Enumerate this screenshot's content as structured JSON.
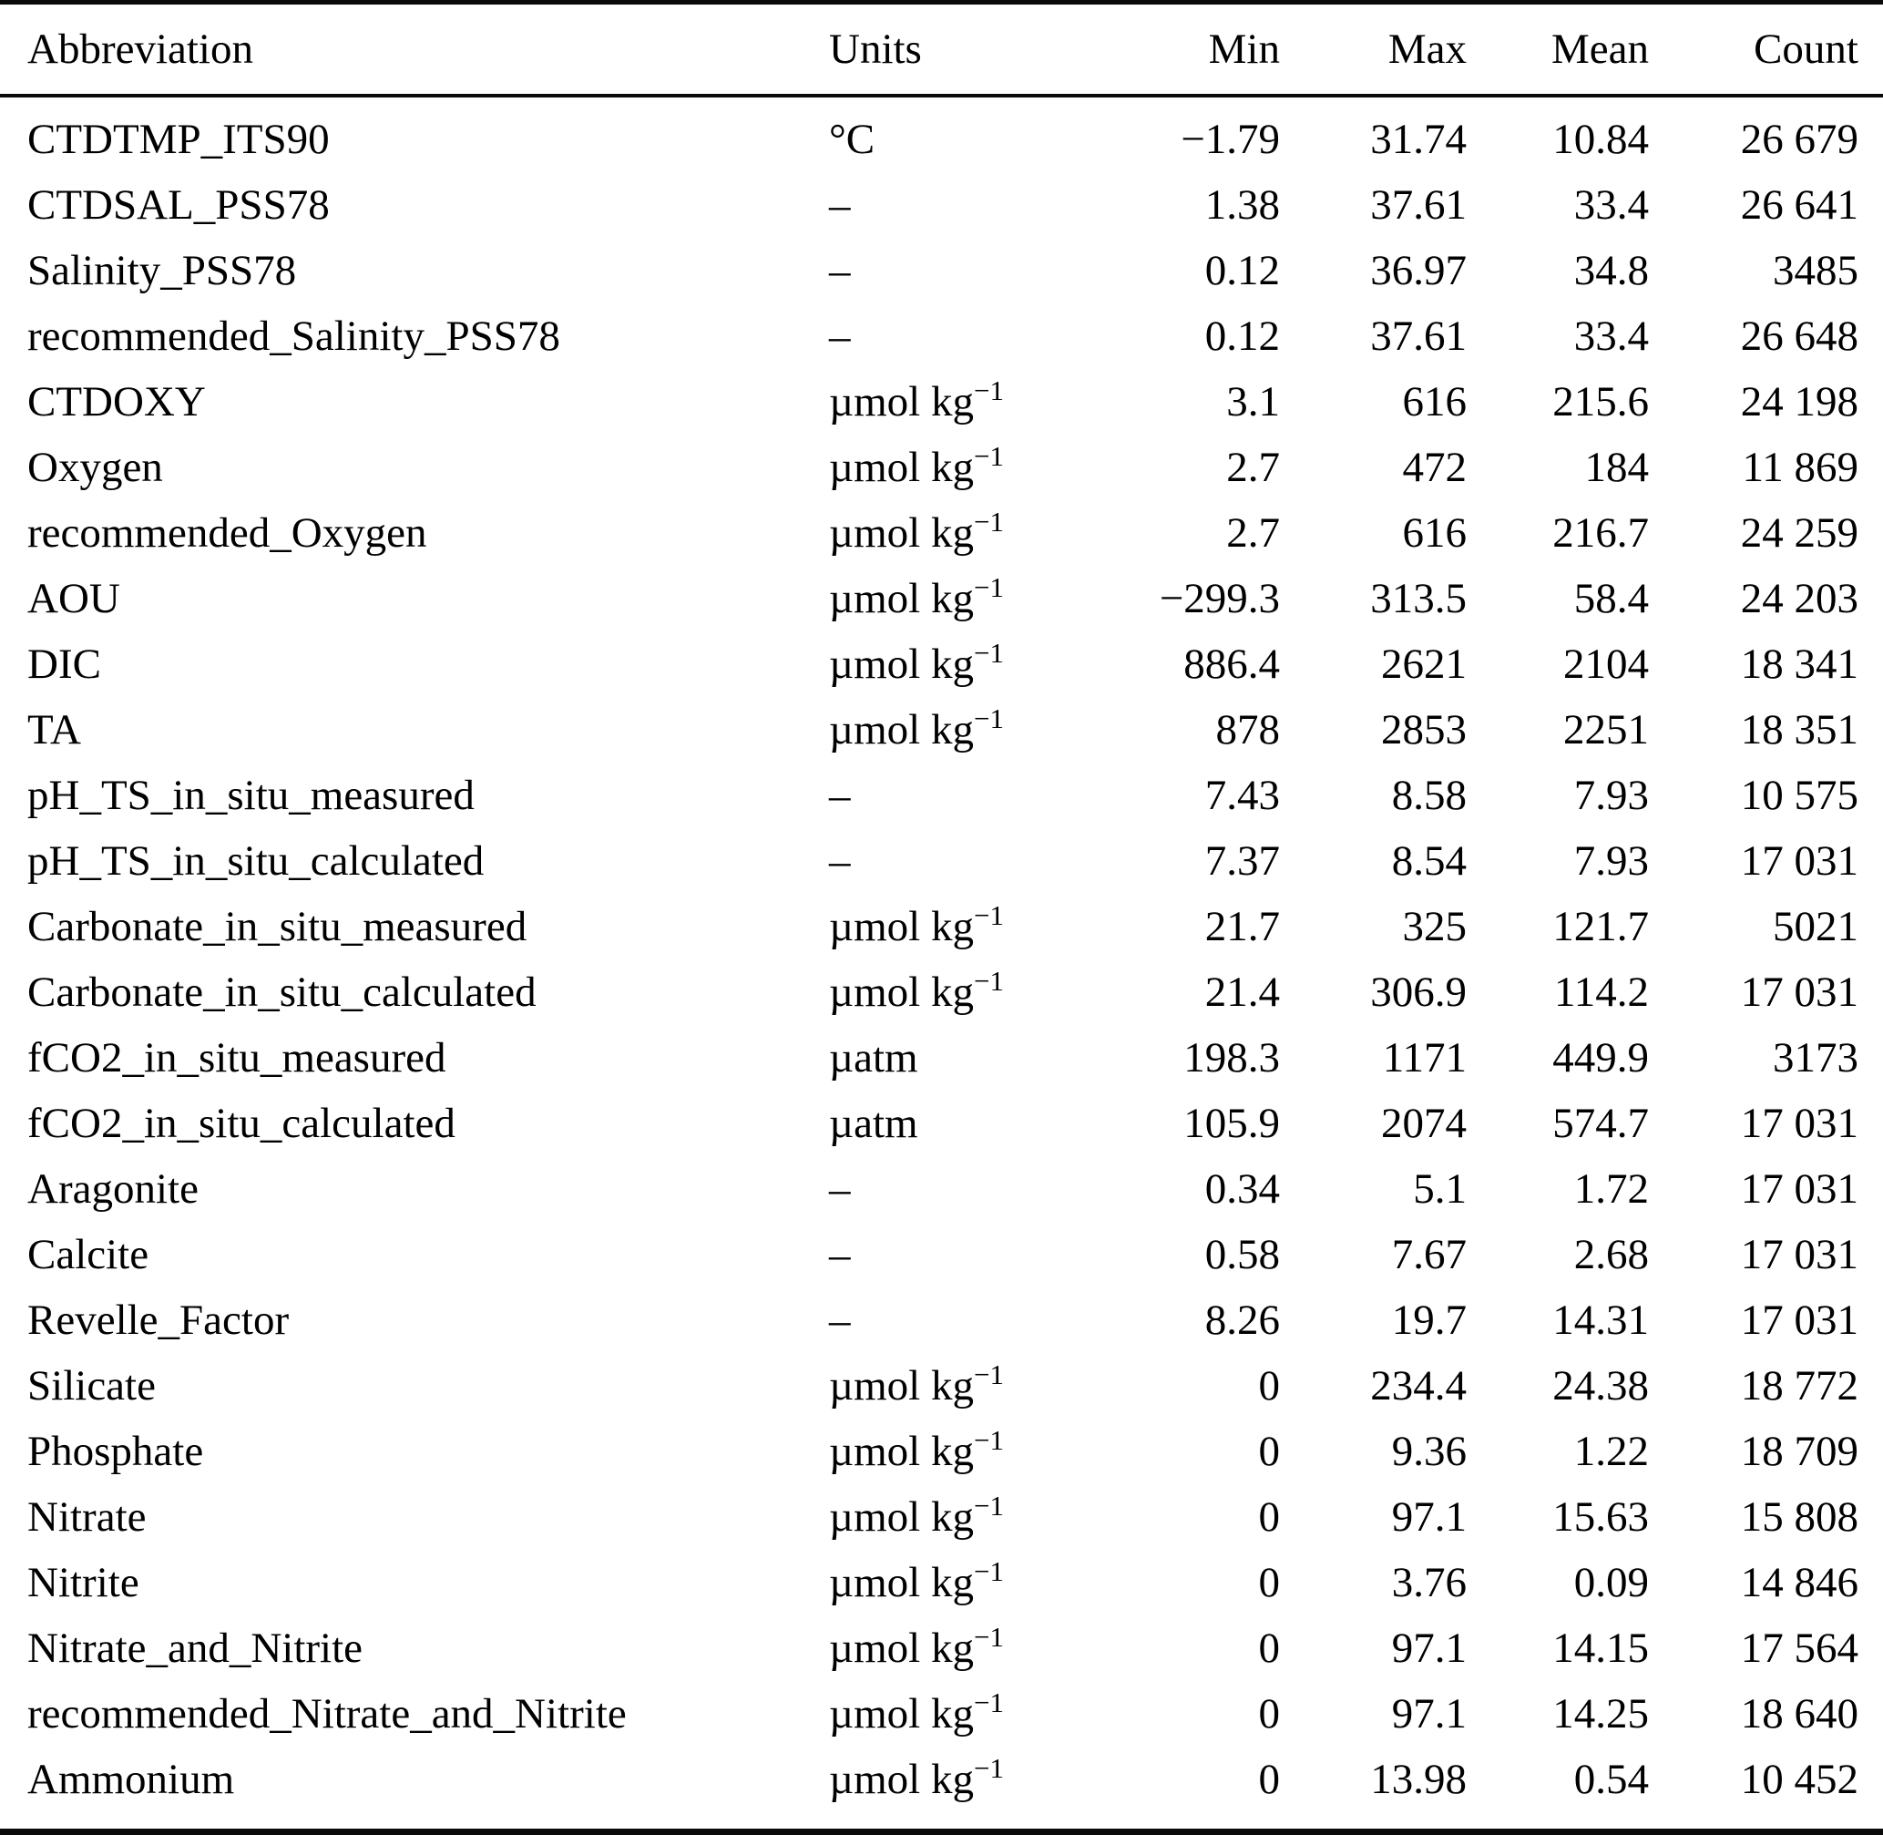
{
  "table": {
    "columns": [
      {
        "key": "abbreviation",
        "label": "Abbreviation",
        "align": "left"
      },
      {
        "key": "units",
        "label": "Units",
        "align": "left"
      },
      {
        "key": "min",
        "label": "Min",
        "align": "right"
      },
      {
        "key": "max",
        "label": "Max",
        "align": "right"
      },
      {
        "key": "mean",
        "label": "Mean",
        "align": "right"
      },
      {
        "key": "count",
        "label": "Count",
        "align": "right"
      }
    ],
    "rows": [
      [
        "CTDTMP_ITS90",
        "°C",
        "−1.79",
        "31.74",
        "10.84",
        "26 679"
      ],
      [
        "CTDSAL_PSS78",
        "–",
        "1.38",
        "37.61",
        "33.4",
        "26 641"
      ],
      [
        "Salinity_PSS78",
        "–",
        "0.12",
        "36.97",
        "34.8",
        "3485"
      ],
      [
        "recommended_Salinity_PSS78",
        "–",
        "0.12",
        "37.61",
        "33.4",
        "26 648"
      ],
      [
        "CTDOXY",
        "µmol kg^−1",
        "3.1",
        "616",
        "215.6",
        "24 198"
      ],
      [
        "Oxygen",
        "µmol kg^−1",
        "2.7",
        "472",
        "184",
        "11 869"
      ],
      [
        "recommended_Oxygen",
        "µmol kg^−1",
        "2.7",
        "616",
        "216.7",
        "24 259"
      ],
      [
        "AOU",
        "µmol kg^−1",
        "−299.3",
        "313.5",
        "58.4",
        "24 203"
      ],
      [
        "DIC",
        "µmol kg^−1",
        "886.4",
        "2621",
        "2104",
        "18 341"
      ],
      [
        "TA",
        "µmol kg^−1",
        "878",
        "2853",
        "2251",
        "18 351"
      ],
      [
        "pH_TS_in_situ_measured",
        "–",
        "7.43",
        "8.58",
        "7.93",
        "10 575"
      ],
      [
        "pH_TS_in_situ_calculated",
        "–",
        "7.37",
        "8.54",
        "7.93",
        "17 031"
      ],
      [
        "Carbonate_in_situ_measured",
        "µmol kg^−1",
        "21.7",
        "325",
        "121.7",
        "5021"
      ],
      [
        "Carbonate_in_situ_calculated",
        "µmol kg^−1",
        "21.4",
        "306.9",
        "114.2",
        "17 031"
      ],
      [
        "fCO2_in_situ_measured",
        "µatm",
        "198.3",
        "1171",
        "449.9",
        "3173"
      ],
      [
        "fCO2_in_situ_calculated",
        "µatm",
        "105.9",
        "2074",
        "574.7",
        "17 031"
      ],
      [
        "Aragonite",
        "–",
        "0.34",
        "5.1",
        "1.72",
        "17 031"
      ],
      [
        "Calcite",
        "–",
        "0.58",
        "7.67",
        "2.68",
        "17 031"
      ],
      [
        "Revelle_Factor",
        "–",
        "8.26",
        "19.7",
        "14.31",
        "17 031"
      ],
      [
        "Silicate",
        "µmol kg^−1",
        "0",
        "234.4",
        "24.38",
        "18 772"
      ],
      [
        "Phosphate",
        "µmol kg^−1",
        "0",
        "9.36",
        "1.22",
        "18 709"
      ],
      [
        "Nitrate",
        "µmol kg^−1",
        "0",
        "97.1",
        "15.63",
        "15 808"
      ],
      [
        "Nitrite",
        "µmol kg^−1",
        "0",
        "3.76",
        "0.09",
        "14 846"
      ],
      [
        "Nitrate_and_Nitrite",
        "µmol kg^−1",
        "0",
        "97.1",
        "14.15",
        "17 564"
      ],
      [
        "recommended_Nitrate_and_Nitrite",
        "µmol kg^−1",
        "0",
        "97.1",
        "14.25",
        "18 640"
      ],
      [
        "Ammonium",
        "µmol kg^−1",
        "0",
        "13.98",
        "0.54",
        "10 452"
      ]
    ]
  },
  "chart_data": {
    "type": "table",
    "title": "",
    "columns": [
      "Abbreviation",
      "Units",
      "Min",
      "Max",
      "Mean",
      "Count"
    ]
  }
}
